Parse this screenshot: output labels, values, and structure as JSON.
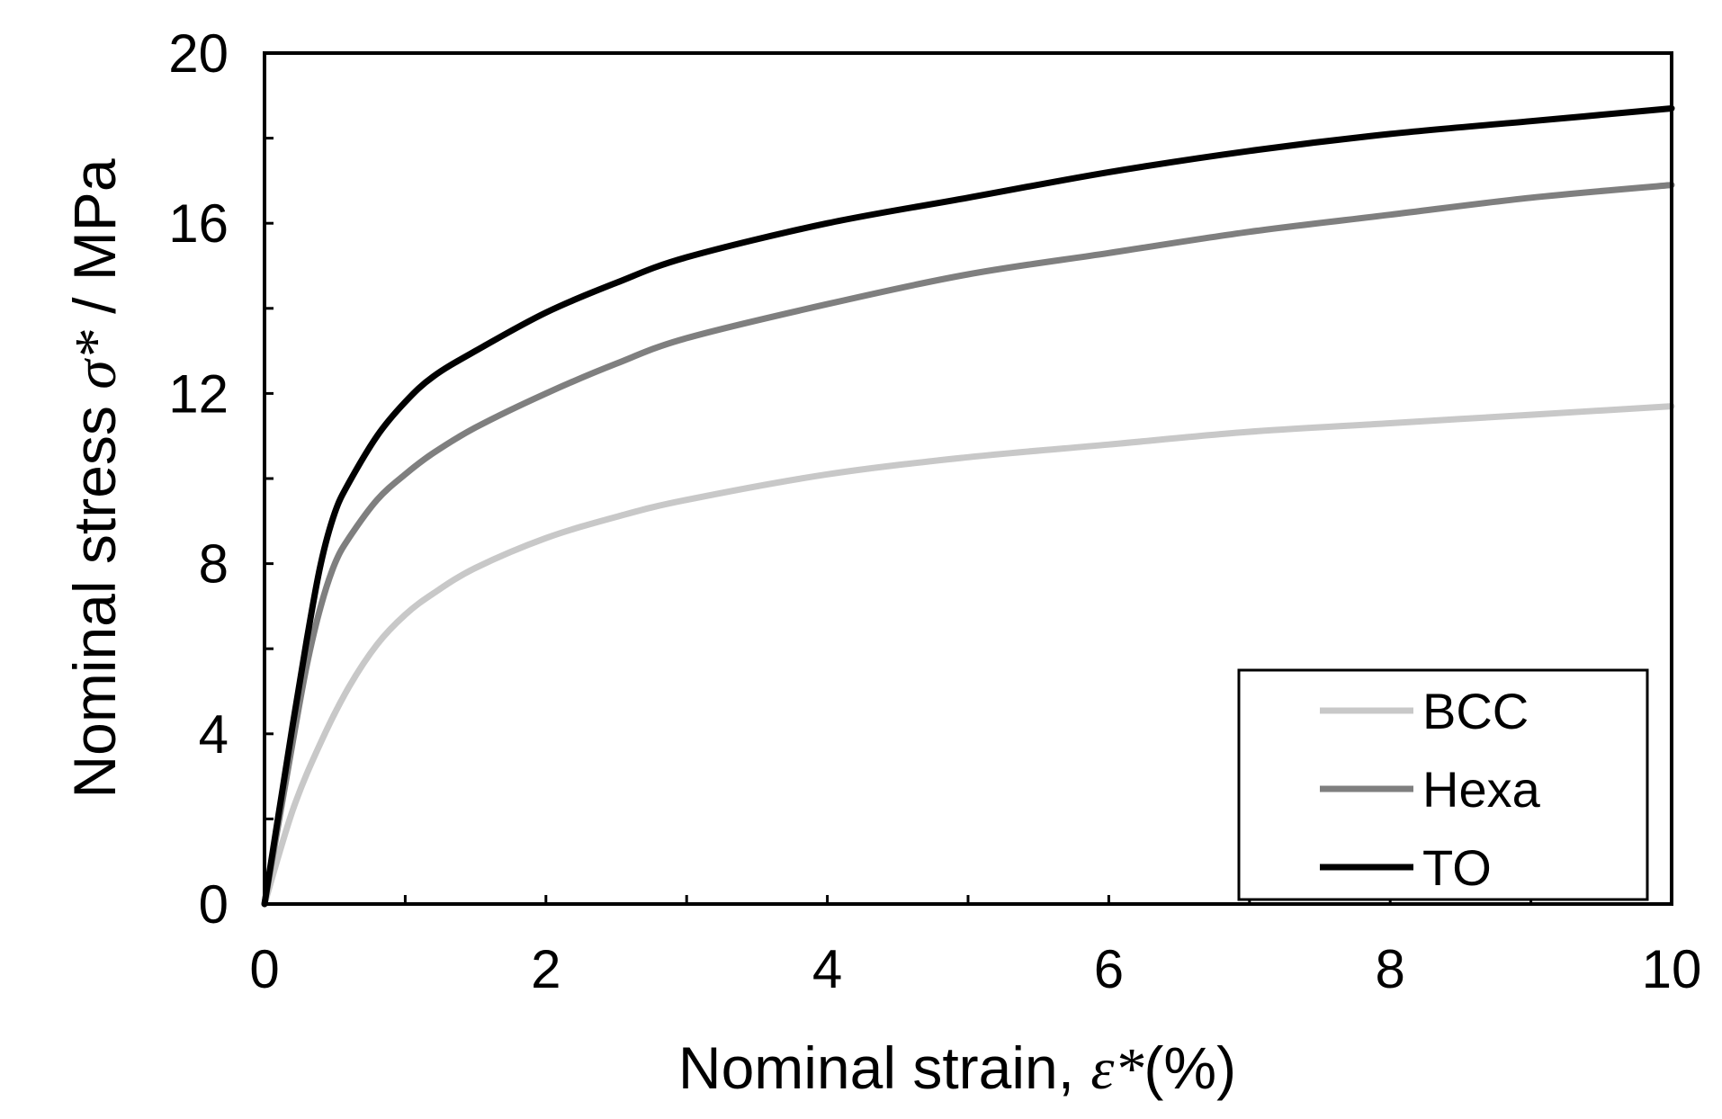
{
  "chart_data": {
    "type": "line",
    "title": "",
    "xlabel": {
      "prefix": "Nominal strain, ",
      "symbol": "ε*",
      "suffix": "(%)"
    },
    "ylabel": {
      "prefix": "Nominal stress ",
      "symbol": "σ*",
      "suffix": " / MPa"
    },
    "xlim": [
      0,
      10
    ],
    "ylim": [
      0,
      20
    ],
    "xticks": [
      0,
      2,
      4,
      6,
      8,
      10
    ],
    "yticks": [
      0,
      4,
      8,
      12,
      16,
      20
    ],
    "x_minor_step": 1,
    "y_minor_step": 2,
    "grid": false,
    "legend_position": "bottom-right",
    "series": [
      {
        "name": "BCC",
        "color": "#c8c8c8",
        "x": [
          0,
          0.2,
          0.4,
          0.6,
          0.8,
          1.0,
          1.2,
          1.5,
          2.0,
          2.5,
          3.0,
          4.0,
          5.0,
          6.0,
          7.0,
          8.0,
          9.0,
          10.0
        ],
        "y": [
          0,
          2.2,
          3.8,
          5.1,
          6.1,
          6.8,
          7.3,
          7.9,
          8.6,
          9.1,
          9.5,
          10.1,
          10.5,
          10.8,
          11.1,
          11.3,
          11.5,
          11.7
        ]
      },
      {
        "name": "Hexa",
        "color": "#7f7f7f",
        "x": [
          0,
          0.1,
          0.2,
          0.3,
          0.4,
          0.5,
          0.6,
          0.8,
          1.0,
          1.2,
          1.5,
          2.0,
          2.5,
          3.0,
          4.0,
          5.0,
          6.0,
          7.0,
          8.0,
          9.0,
          10.0
        ],
        "y": [
          0,
          1.9,
          3.8,
          5.6,
          7.0,
          8.0,
          8.6,
          9.5,
          10.1,
          10.6,
          11.2,
          12.0,
          12.7,
          13.3,
          14.1,
          14.8,
          15.3,
          15.8,
          16.2,
          16.6,
          16.9
        ]
      },
      {
        "name": "TO",
        "color": "#000000",
        "x": [
          0,
          0.1,
          0.2,
          0.3,
          0.4,
          0.5,
          0.6,
          0.8,
          1.0,
          1.2,
          1.5,
          2.0,
          2.5,
          3.0,
          4.0,
          5.0,
          6.0,
          7.0,
          8.0,
          9.0,
          10.0
        ],
        "y": [
          0,
          2.1,
          4.2,
          6.2,
          8.0,
          9.2,
          9.9,
          11.0,
          11.8,
          12.4,
          13.0,
          13.9,
          14.6,
          15.2,
          16.0,
          16.6,
          17.2,
          17.7,
          18.1,
          18.4,
          18.7
        ]
      }
    ]
  }
}
